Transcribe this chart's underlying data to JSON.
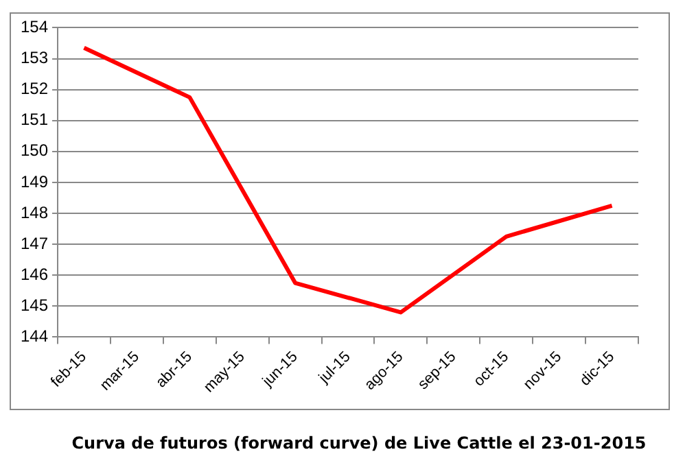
{
  "chart_data": {
    "type": "line",
    "title": "Curva de futuros (forward curve) de Live Cattle el 23-01-2015",
    "categories": [
      "feb-15",
      "mar-15",
      "abr-15",
      "may-15",
      "jun-15",
      "jul-15",
      "ago-15",
      "sep-15",
      "oct-15",
      "nov-15",
      "dic-15"
    ],
    "series": [
      {
        "color": "#ff0000",
        "values": [
          153.35,
          null,
          151.75,
          null,
          145.75,
          null,
          144.8,
          null,
          147.25,
          null,
          148.25
        ]
      }
    ],
    "ylim": [
      144,
      154
    ],
    "yticks": [
      144,
      145,
      146,
      147,
      148,
      149,
      150,
      151,
      152,
      153,
      154
    ],
    "grid": "y",
    "legend": false,
    "marker": "none",
    "line_style": "solid"
  }
}
